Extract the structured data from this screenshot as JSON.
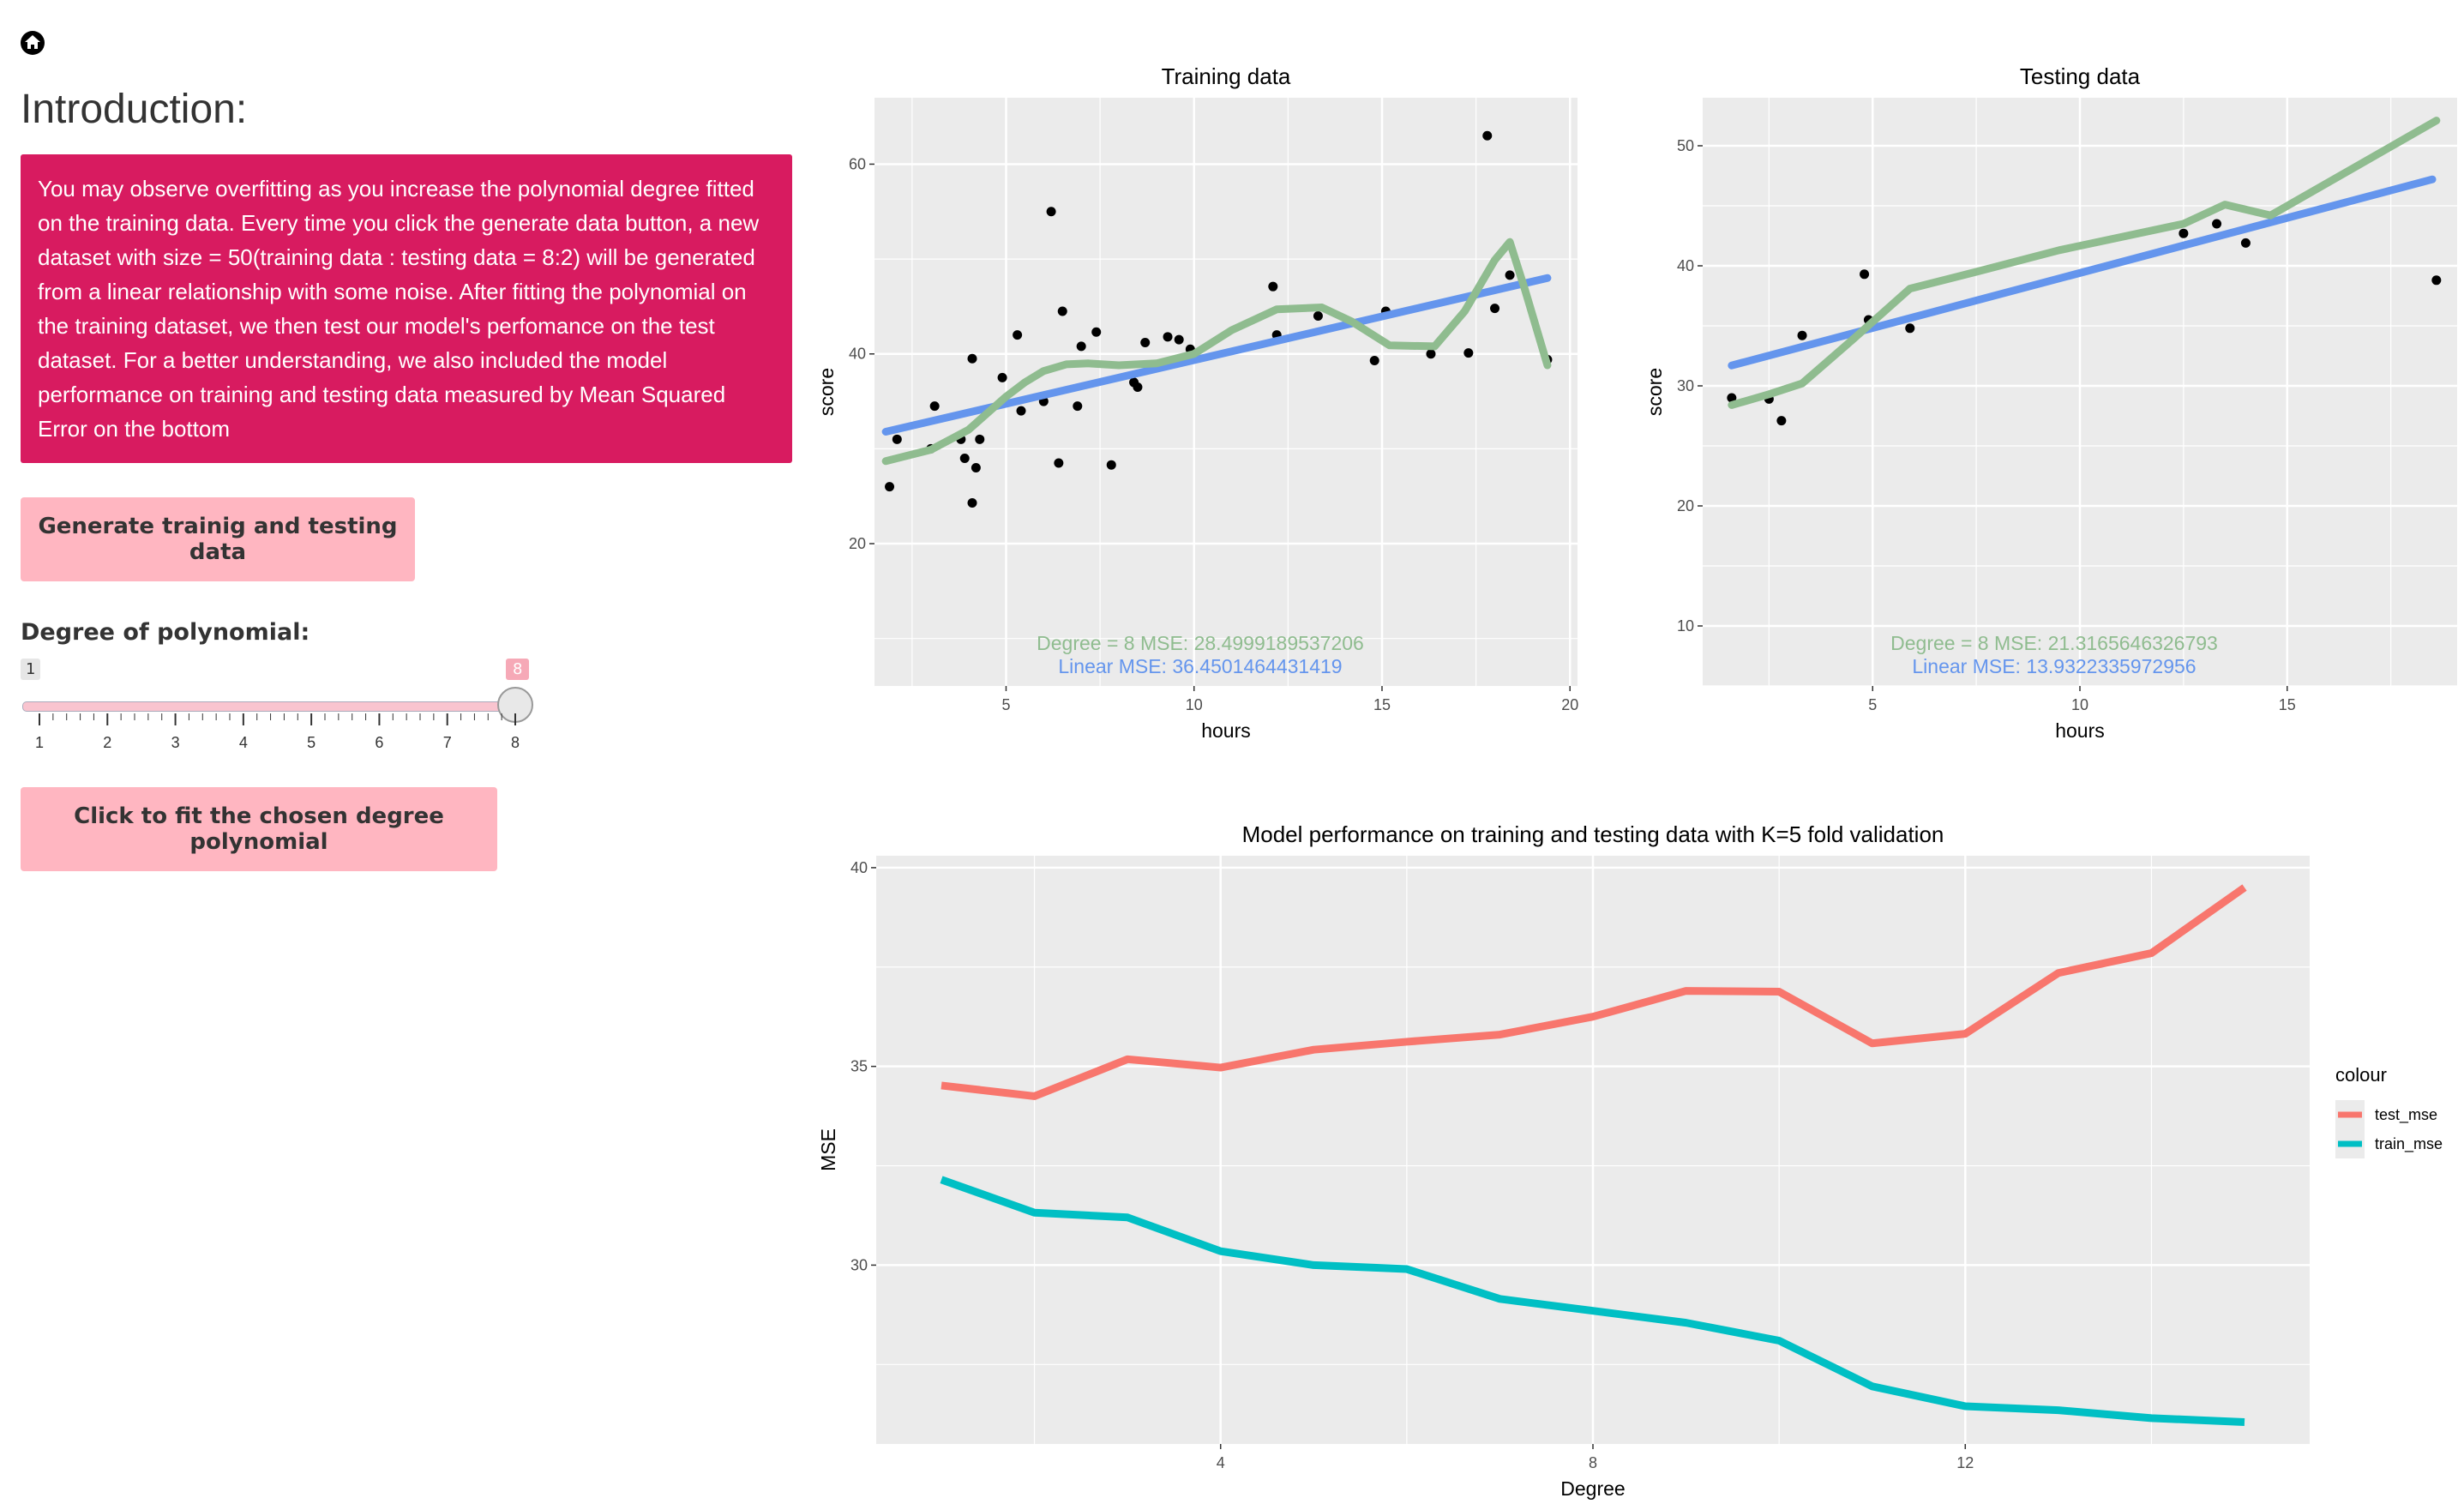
{
  "sidebar": {
    "title": "Introduction:",
    "intro_text": "You may observe overfitting as you increase the polynomial degree fitted on the training data. Every time you click the generate data button, a new dataset with size = 50(training data : testing data = 8:2) will be generated from a linear relationship with some noise. After fitting the polynomial on the training dataset, we then test our model's perfomance on the test dataset. For a better understanding, we also included the model performance on training and testing data measured by Mean Squared Error on the bottom",
    "generate_button": "Generate trainig and testing data",
    "slider": {
      "label": "Degree of polynomial:",
      "min": 1,
      "max": 8,
      "value": 8,
      "min_label": "1",
      "value_label": "8",
      "tick_labels": [
        "1",
        "2",
        "3",
        "4",
        "5",
        "6",
        "7",
        "8"
      ]
    },
    "fit_button": "Click to fit the chosen degree polynomial"
  },
  "colors": {
    "accent_box": "#d81b60",
    "button": "#ffb6c1",
    "linear": "#6495ed",
    "poly": "#8fbc8f",
    "test_mse": "#f8766d",
    "train_mse": "#00bfc4",
    "panel": "#ebebeb"
  },
  "chart_data": [
    {
      "type": "scatter",
      "title": "Training data",
      "xlabel": "hours",
      "ylabel": "score",
      "xlim": [
        1.5,
        20.2
      ],
      "ylim": [
        5,
        67
      ],
      "xticks": [
        5,
        10,
        15,
        20
      ],
      "yticks": [
        20,
        40,
        60
      ],
      "points": [
        [
          1.9,
          26
        ],
        [
          2.1,
          31
        ],
        [
          3.0,
          30
        ],
        [
          3.1,
          34.5
        ],
        [
          3.8,
          31
        ],
        [
          3.9,
          29
        ],
        [
          4.1,
          39.5
        ],
        [
          4.1,
          24.3
        ],
        [
          4.2,
          28
        ],
        [
          4.3,
          31
        ],
        [
          4.9,
          37.5
        ],
        [
          5.3,
          42
        ],
        [
          5.4,
          34
        ],
        [
          6.0,
          35
        ],
        [
          6.2,
          55
        ],
        [
          6.4,
          28.5
        ],
        [
          6.5,
          44.5
        ],
        [
          6.9,
          34.5
        ],
        [
          7.0,
          40.8
        ],
        [
          7.4,
          42.3
        ],
        [
          7.8,
          28.3
        ],
        [
          8.4,
          37
        ],
        [
          8.5,
          36.5
        ],
        [
          8.7,
          41.2
        ],
        [
          9.3,
          41.8
        ],
        [
          9.6,
          41.5
        ],
        [
          9.9,
          40.5
        ],
        [
          12.1,
          47.1
        ],
        [
          12.2,
          42
        ],
        [
          13.3,
          44
        ],
        [
          14.8,
          39.3
        ],
        [
          15.1,
          44.5
        ],
        [
          16.3,
          40
        ],
        [
          17.3,
          40.1
        ],
        [
          17.8,
          63
        ],
        [
          18.0,
          44.8
        ],
        [
          18.4,
          48.3
        ],
        [
          19.4,
          39.4
        ]
      ],
      "series": [
        {
          "name": "Linear",
          "values": [
            [
              1.8,
              31.8
            ],
            [
              19.4,
              48
            ]
          ]
        },
        {
          "name": "Degree 8",
          "values": [
            [
              1.8,
              28.7
            ],
            [
              3.0,
              29.9
            ],
            [
              4.0,
              32
            ],
            [
              5.0,
              35.5
            ],
            [
              5.5,
              37
            ],
            [
              6.0,
              38.2
            ],
            [
              6.6,
              38.9
            ],
            [
              7.2,
              39
            ],
            [
              8.0,
              38.8
            ],
            [
              9.0,
              39
            ],
            [
              10.0,
              40
            ],
            [
              11.0,
              42.5
            ],
            [
              12.2,
              44.7
            ],
            [
              13.4,
              44.9
            ],
            [
              14.2,
              43.4
            ],
            [
              15.2,
              40.9
            ],
            [
              16.4,
              40.8
            ],
            [
              17.2,
              44.5
            ],
            [
              18.0,
              49.9
            ],
            [
              18.4,
              51.8
            ],
            [
              18.8,
              46.8
            ],
            [
              19.4,
              38.8
            ]
          ]
        }
      ],
      "annotations": [
        "Degree = 8 MSE: 28.4999189537206",
        "Linear MSE: 36.4501464431419"
      ]
    },
    {
      "type": "scatter",
      "title": "Testing data",
      "xlabel": "hours",
      "ylabel": "score",
      "xlim": [
        0.9,
        19.1
      ],
      "ylim": [
        5,
        54
      ],
      "xticks": [
        5,
        10,
        15
      ],
      "yticks": [
        10,
        20,
        30,
        40,
        50
      ],
      "points": [
        [
          1.6,
          29
        ],
        [
          2.5,
          28.9
        ],
        [
          2.8,
          27.1
        ],
        [
          3.3,
          34.2
        ],
        [
          4.8,
          39.3
        ],
        [
          4.9,
          35.5
        ],
        [
          5.9,
          34.8
        ],
        [
          12.5,
          42.7
        ],
        [
          13.3,
          43.5
        ],
        [
          14.0,
          41.9
        ],
        [
          18.6,
          38.8
        ]
      ],
      "series": [
        {
          "name": "Linear",
          "values": [
            [
              1.6,
              31.7
            ],
            [
              18.5,
              47.2
            ]
          ]
        },
        {
          "name": "Degree 8",
          "values": [
            [
              1.6,
              28.4
            ],
            [
              2.5,
              29.3
            ],
            [
              3.3,
              30.2
            ],
            [
              4.5,
              33.8
            ],
            [
              5.9,
              38.1
            ],
            [
              7.5,
              39.5
            ],
            [
              9.5,
              41.3
            ],
            [
              12.5,
              43.5
            ],
            [
              13.5,
              45.1
            ],
            [
              14.6,
              44.2
            ],
            [
              18.6,
              52.1
            ]
          ]
        }
      ],
      "annotations": [
        "Degree = 8 MSE: 21.3165646326793",
        "Linear MSE: 13.9322335972956"
      ]
    },
    {
      "type": "line",
      "title": "Model performance on training and testing data with K=5 fold validation",
      "xlabel": "Degree",
      "ylabel": "MSE",
      "xlim": [
        0.3,
        15.7
      ],
      "ylim": [
        25.5,
        40.3
      ],
      "xticks": [
        4,
        8,
        12
      ],
      "yticks": [
        30,
        35,
        40
      ],
      "legend_title": "colour",
      "legend_position": "right",
      "x": [
        1,
        2,
        3,
        4,
        5,
        6,
        7,
        8,
        9,
        10,
        11,
        12,
        13,
        14,
        15
      ],
      "series": [
        {
          "name": "test_mse",
          "values": [
            34.52,
            34.25,
            35.18,
            34.97,
            35.42,
            35.62,
            35.8,
            36.25,
            36.9,
            36.88,
            35.58,
            35.82,
            37.35,
            37.85,
            39.5
          ]
        },
        {
          "name": "train_mse",
          "values": [
            32.15,
            31.32,
            31.2,
            30.35,
            30.0,
            29.9,
            29.15,
            28.85,
            28.55,
            28.1,
            26.95,
            26.45,
            26.35,
            26.15,
            26.05
          ]
        }
      ]
    }
  ]
}
